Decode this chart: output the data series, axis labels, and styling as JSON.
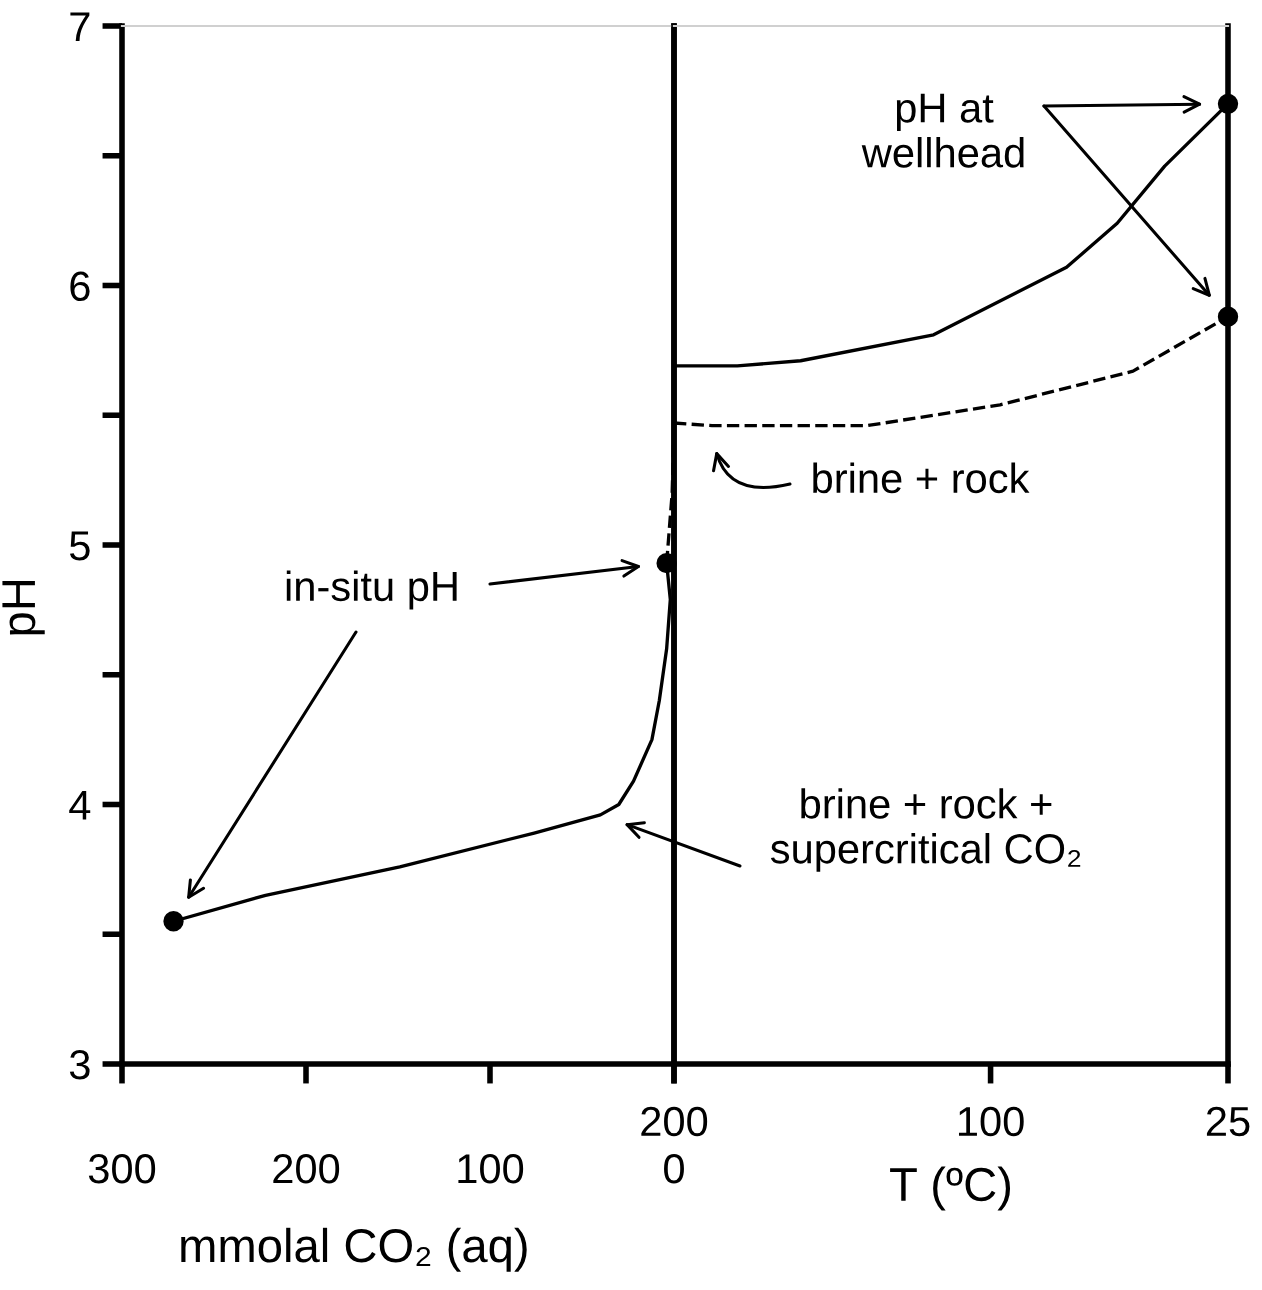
{
  "chart_data": [
    {
      "type": "line",
      "ylabel": "pH",
      "xlabel": "mmolal CO₂ (aq)",
      "xlim": [
        300,
        0
      ],
      "xticks": [
        300,
        200,
        100,
        0
      ],
      "ylim": [
        3,
        7
      ],
      "yticks": [
        3,
        {
          "value": 3.5,
          "label": null
        },
        4,
        {
          "value": 4.5,
          "label": null
        },
        5,
        {
          "value": 5.5,
          "label": null
        },
        6,
        {
          "value": 6.5,
          "label": null
        },
        7
      ],
      "marker": "none",
      "series": [
        {
          "type": "line",
          "color": "#000000",
          "line_style": "solid",
          "x": [
            272,
            222,
            149,
            76,
            40,
            30,
            22,
            12,
            8,
            4,
            2,
            4
          ],
          "values": [
            3.55,
            3.65,
            3.76,
            3.89,
            3.96,
            4.0,
            4.09,
            4.25,
            4.4,
            4.6,
            4.79,
            4.93
          ]
        },
        {
          "type": "line",
          "color": "#000000",
          "line_style": "dashed",
          "x": [
            4,
            1,
            0
          ],
          "values": [
            4.93,
            5.2,
            5.46
          ]
        },
        {
          "type": "scatter",
          "color": "#000000",
          "marker": "circle",
          "x": [
            272,
            4
          ],
          "values": [
            3.55,
            4.93
          ]
        }
      ],
      "annotations": [
        "in-situ pH",
        "brine + rock +\nsupercritical CO₂"
      ]
    },
    {
      "type": "line",
      "xlabel": "T (ºC)",
      "xlim": [
        200,
        25
      ],
      "xticks": [
        200,
        100,
        25
      ],
      "ylim": [
        3,
        7
      ],
      "tick_labels": "x",
      "marker": "none",
      "series": [
        {
          "type": "line",
          "color": "#000000",
          "line_style": "solid",
          "x": [
            200,
            180,
            160,
            118,
            76,
            60,
            45,
            25
          ],
          "values": [
            5.69,
            5.69,
            5.71,
            5.81,
            6.07,
            6.24,
            6.46,
            6.7
          ]
        },
        {
          "type": "line",
          "color": "#000000",
          "line_style": "dashed",
          "x": [
            200,
            188,
            139,
            97,
            55,
            25
          ],
          "values": [
            5.47,
            5.46,
            5.46,
            5.54,
            5.67,
            5.88
          ]
        },
        {
          "type": "scatter",
          "color": "#000000",
          "marker": "circle",
          "x": [
            25,
            25
          ],
          "values": [
            6.7,
            5.88
          ]
        }
      ],
      "annotations": [
        "pH at\nwellhead",
        "brine + rock"
      ]
    }
  ]
}
